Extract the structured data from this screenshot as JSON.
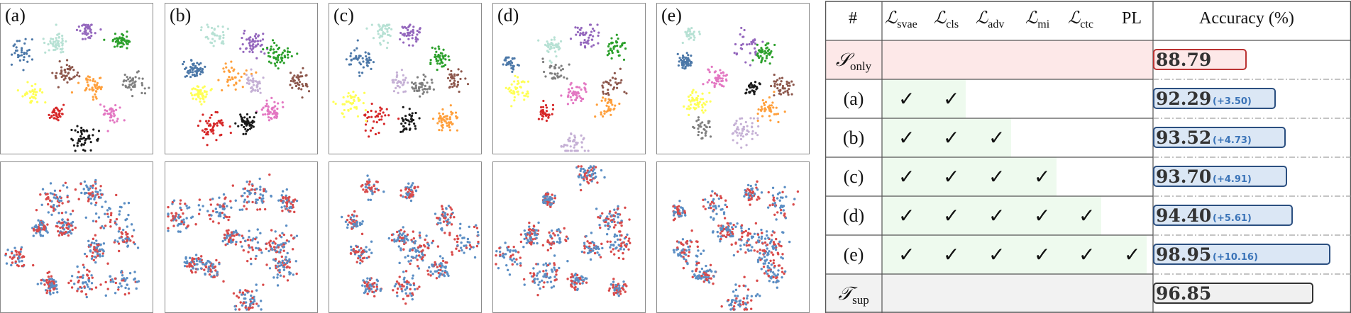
{
  "panels_top": [
    {
      "label": "(a)"
    },
    {
      "label": "(b)"
    },
    {
      "label": "(c)"
    },
    {
      "label": "(d)"
    },
    {
      "label": "(e)"
    }
  ],
  "panels_bottom": [
    {
      "label": ""
    },
    {
      "label": ""
    },
    {
      "label": ""
    },
    {
      "label": ""
    },
    {
      "label": ""
    }
  ],
  "colors": {
    "class_palette": [
      "#7f7f7f",
      "#e377c2",
      "#1a1a1a",
      "#d62728",
      "#ffff55",
      "#4c78a8",
      "#b7e1d4",
      "#9467bd",
      "#2ca02c",
      "#8c564b",
      "#ff9f3b",
      "#c5b0d5"
    ],
    "source_dot": "#5b8ec4",
    "target_dot": "#d94a4a",
    "sonly_bg": "#fde8e8",
    "green_bg": "#eefaee",
    "tsup_bg": "#f2f2f2",
    "blue_bar": "#dbe7f5",
    "red_bar": "#fde8e8",
    "gray_bar": "#f0f0f0"
  },
  "table": {
    "header": {
      "hash": "#",
      "columns": [
        {
          "script": "ℒ",
          "sub": "svae"
        },
        {
          "script": "ℒ",
          "sub": "cls"
        },
        {
          "script": "ℒ",
          "sub": "adv"
        },
        {
          "script": "ℒ",
          "sub": "mi"
        },
        {
          "script": "ℒ",
          "sub": "ctc"
        },
        {
          "script": "PL",
          "sub": ""
        }
      ],
      "accuracy": "Accuracy (%)"
    },
    "check_mark": "✓",
    "rows": [
      {
        "label_script": "𝒮",
        "label_sub": "only",
        "checks": 0,
        "accuracy": "88.79",
        "delta": "",
        "acc_value": 88.79,
        "bar": "red"
      },
      {
        "label": "(a)",
        "checks": 2,
        "accuracy": "92.29",
        "delta": "(+3.50)",
        "acc_value": 92.29,
        "bar": "blue"
      },
      {
        "label": "(b)",
        "checks": 3,
        "accuracy": "93.52",
        "delta": "(+4.73)",
        "acc_value": 93.52,
        "bar": "blue"
      },
      {
        "label": "(c)",
        "checks": 4,
        "accuracy": "93.70",
        "delta": "(+4.91)",
        "acc_value": 93.7,
        "bar": "blue"
      },
      {
        "label": "(d)",
        "checks": 5,
        "accuracy": "94.40",
        "delta": "(+5.61)",
        "acc_value": 94.4,
        "bar": "blue"
      },
      {
        "label": "(e)",
        "checks": 6,
        "accuracy": "98.95",
        "delta": "(+10.16)",
        "acc_value": 98.95,
        "bar": "blue"
      },
      {
        "label_script": "𝒯",
        "label_sub": "sup",
        "checks": 0,
        "accuracy": "96.85",
        "delta": "",
        "acc_value": 96.85,
        "bar": "gray"
      }
    ]
  }
}
